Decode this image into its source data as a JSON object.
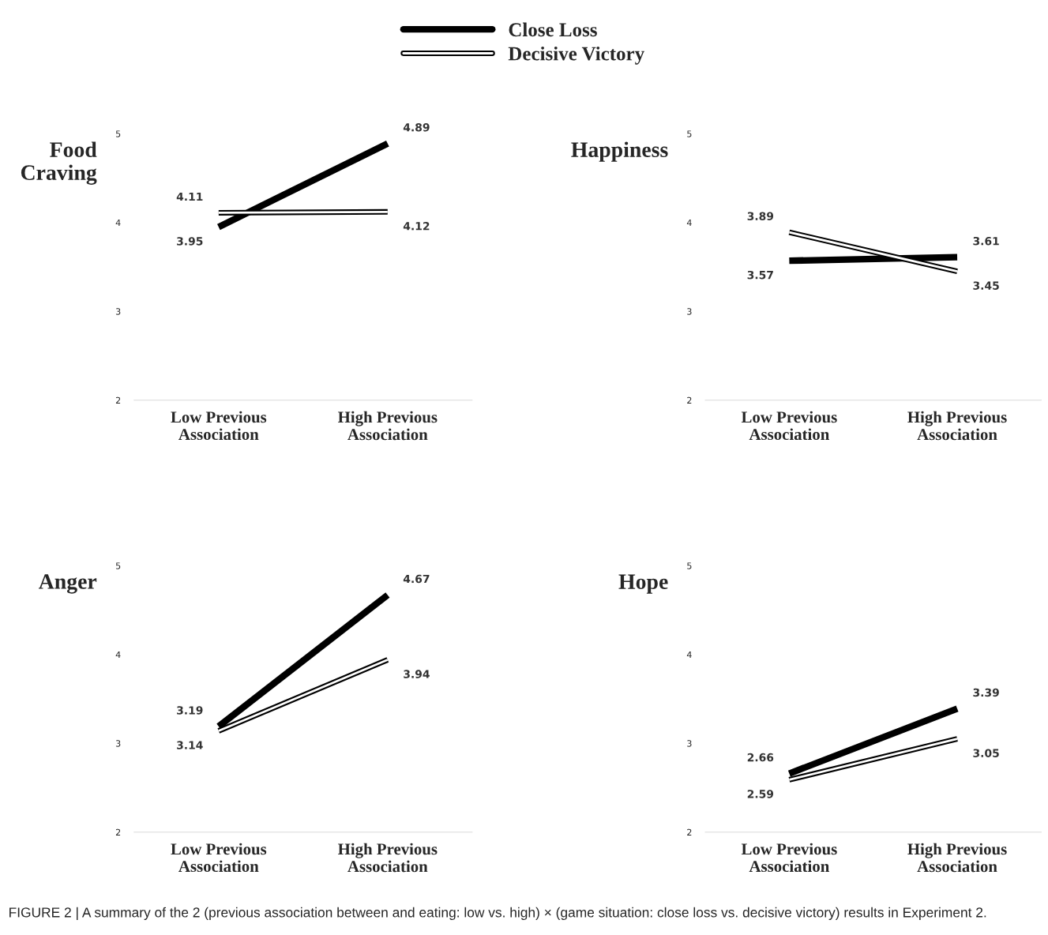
{
  "chart_data": [
    {
      "type": "line",
      "title": "Food\nCraving",
      "categories": [
        "Low Previous\nAssociation",
        "High Previous\nAssociation"
      ],
      "series": [
        {
          "name": "Close Loss",
          "color": "#000000",
          "values": [
            3.95,
            4.89
          ]
        },
        {
          "name": "Decisive Victory",
          "color": "#000000",
          "values": [
            4.11,
            4.12
          ]
        }
      ],
      "ylim": [
        2,
        5
      ],
      "yticks": [
        2,
        3,
        4,
        5
      ],
      "data_labels": true,
      "legend": "top",
      "grid": false,
      "annotations": [
        "FIGURE 2 | A summary of the 2 (previous association between and eating: low vs. high) × (game situation: close loss vs. decisive victory) results in Experiment 2."
      ]
    },
    {
      "type": "line",
      "title": "Happiness",
      "categories": [
        "Low Previous\nAssociation",
        "High Previous\nAssociation"
      ],
      "series": [
        {
          "color": "#000000",
          "values": [
            3.57,
            3.61
          ]
        },
        {
          "color": "#000000",
          "values": [
            3.89,
            3.45
          ]
        }
      ],
      "ylim": [
        2,
        5
      ],
      "yticks": [
        2,
        3,
        4,
        5
      ],
      "data_labels": true,
      "grid": false
    },
    {
      "type": "line",
      "title": "Anger",
      "categories": [
        "Low Previous\nAssociation",
        "High Previous\nAssociation"
      ],
      "series": [
        {
          "color": "#000000",
          "values": [
            3.19,
            4.67
          ]
        },
        {
          "color": "#000000",
          "values": [
            3.14,
            3.94
          ]
        }
      ],
      "ylim": [
        2,
        5
      ],
      "yticks": [
        2,
        3,
        4,
        5
      ],
      "data_labels": true,
      "grid": false
    },
    {
      "type": "line",
      "title": "Hope",
      "categories": [
        "Low Previous\nAssociation",
        "High Previous\nAssociation"
      ],
      "series": [
        {
          "color": "#000000",
          "values": [
            2.66,
            3.39
          ]
        },
        {
          "color": "#000000",
          "values": [
            2.59,
            3.05
          ]
        }
      ],
      "ylim": [
        2,
        5
      ],
      "yticks": [
        2,
        3,
        4,
        5
      ],
      "data_labels": true,
      "grid": false
    }
  ]
}
